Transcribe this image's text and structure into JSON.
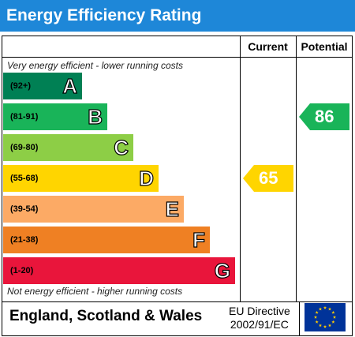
{
  "header": {
    "title": "Energy Efficiency Rating"
  },
  "columns": {
    "current": "Current",
    "potential": "Potential"
  },
  "notes": {
    "top": "Very energy efficient - lower running costs",
    "bottom": "Not energy efficient - higher running costs"
  },
  "footer": {
    "region": "England, Scotland & Wales",
    "directive_line1": "EU Directive",
    "directive_line2": "2002/91/EC"
  },
  "chart_data": {
    "type": "bar",
    "bands": [
      {
        "range": "(92+)",
        "letter": "A",
        "color": "#008054"
      },
      {
        "range": "(81-91)",
        "letter": "B",
        "color": "#19b459"
      },
      {
        "range": "(69-80)",
        "letter": "C",
        "color": "#8dce46"
      },
      {
        "range": "(55-68)",
        "letter": "D",
        "color": "#ffd500"
      },
      {
        "range": "(39-54)",
        "letter": "E",
        "color": "#fcaa65"
      },
      {
        "range": "(21-38)",
        "letter": "F",
        "color": "#ef8023"
      },
      {
        "range": "(1-20)",
        "letter": "G",
        "color": "#e9153b"
      }
    ],
    "current": {
      "value": 65,
      "band": "D",
      "color": "#ffd500"
    },
    "potential": {
      "value": 86,
      "band": "B",
      "color": "#19b459"
    }
  },
  "colors": {
    "title_bar": "#1e87d8",
    "eu_blue": "#003399",
    "eu_star": "#ffcc00"
  },
  "icons": {
    "eu_flag": "eu-flag-icon"
  }
}
